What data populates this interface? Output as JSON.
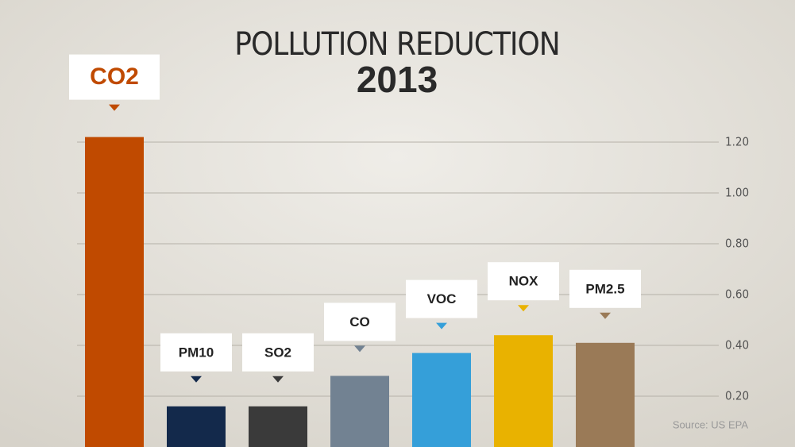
{
  "chart_data": {
    "type": "bar",
    "title": "POLLUTION REDUCTION",
    "subtitle": "2013",
    "source": "Source: US EPA",
    "categories": [
      "CO2",
      "PM10",
      "SO2",
      "CO",
      "VOC",
      "NOX",
      "PM2.5"
    ],
    "values": [
      1.22,
      0.16,
      0.16,
      0.28,
      0.37,
      0.44,
      0.41
    ],
    "colors": [
      "#c04a00",
      "#13294b",
      "#3a3a3a",
      "#728292",
      "#359fd9",
      "#e9b200",
      "#9a7a57"
    ],
    "ylim": [
      0,
      1.2
    ],
    "yticks": [
      {
        "value": 0.2,
        "label": "0.20"
      },
      {
        "value": 0.4,
        "label": "0.40"
      },
      {
        "value": 0.6,
        "label": "0.60"
      },
      {
        "value": 0.8,
        "label": "0.80"
      },
      {
        "value": 1,
        "label": "1.00"
      },
      {
        "value": 1.2,
        "label": "1.20"
      }
    ],
    "grid": true,
    "y_axis_side": "right"
  }
}
